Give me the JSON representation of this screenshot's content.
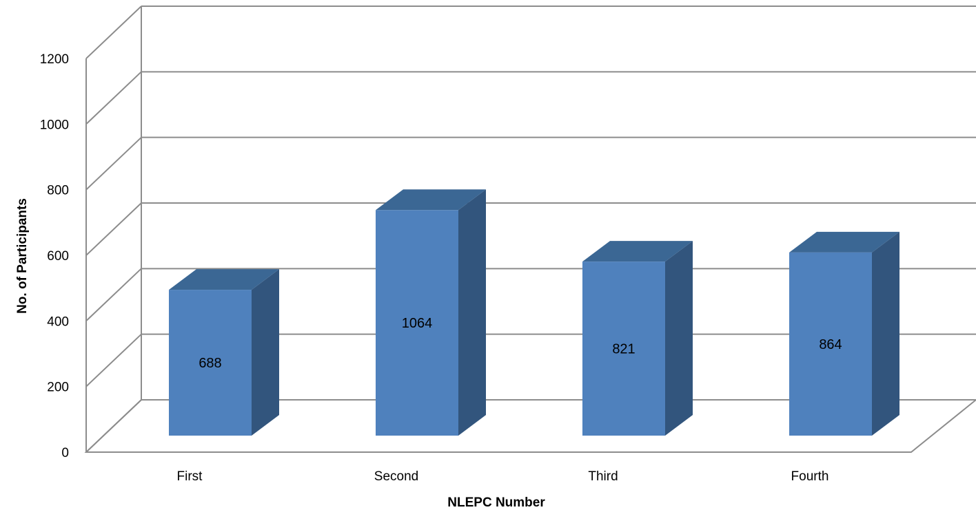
{
  "chart_data": {
    "type": "bar",
    "title": "",
    "xlabel": "NLEPC Number",
    "ylabel": "No. of Participants",
    "categories": [
      "First",
      "Second",
      "Third",
      "Fourth"
    ],
    "series": [
      {
        "values": [
          688,
          1064,
          821,
          864
        ]
      }
    ],
    "data_labels": [
      "688",
      "1064",
      "821",
      "864"
    ],
    "y_ticks": [
      0,
      200,
      400,
      600,
      800,
      1000,
      1200
    ],
    "y_tick_labels": [
      "0",
      "200",
      "400",
      "600",
      "800",
      "1000",
      "1200"
    ],
    "ylim": [
      0,
      1200
    ],
    "grid": true,
    "legend": "none",
    "style": "3d-column",
    "colors": {
      "bar_front": "#4F81BD",
      "bar_top": "#3B6794",
      "bar_side": "#32557D",
      "grid": "#8C8C8C"
    }
  }
}
